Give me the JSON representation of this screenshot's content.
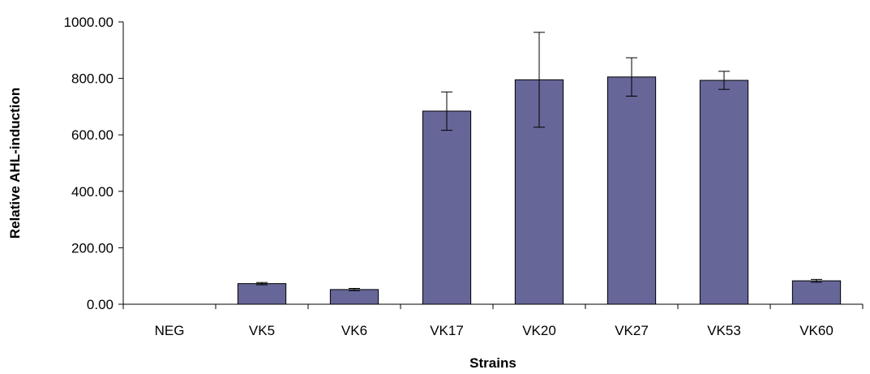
{
  "chart_data": {
    "type": "bar",
    "title": "",
    "xlabel": "Strains",
    "ylabel": "Relative AHL-induction",
    "categories": [
      "NEG",
      "VK5",
      "VK6",
      "VK17",
      "VK20",
      "VK27",
      "VK53",
      "VK60"
    ],
    "values": [
      0,
      73,
      52,
      684,
      795,
      805,
      793,
      83
    ],
    "errors": [
      0,
      4,
      4,
      68,
      168,
      68,
      32,
      5
    ],
    "ylim": [
      0,
      1000
    ],
    "yticks": [
      "0.00",
      "200.00",
      "400.00",
      "600.00",
      "800.00",
      "1000.00"
    ],
    "grid": false,
    "legend": "none",
    "colors": {
      "bar": "#666699",
      "bar_edge": "#000000",
      "axis": "#000000"
    }
  }
}
